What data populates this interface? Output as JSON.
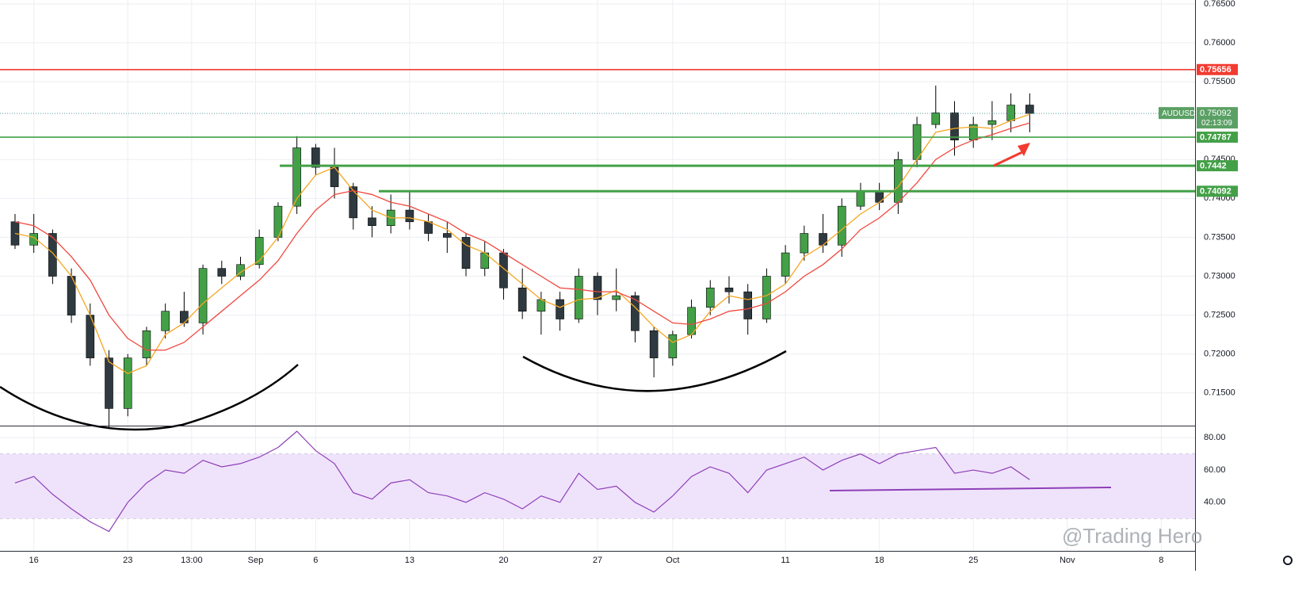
{
  "chart_data": [
    {
      "type": "candlestick",
      "symbol": "AUDUSD",
      "countdown": "02:13:09",
      "categories": [
        null,
        null,
        null,
        null,
        null,
        null,
        null,
        null,
        null,
        null,
        null,
        null,
        null,
        null,
        null,
        null,
        null,
        null,
        null,
        null,
        null,
        null,
        null,
        null,
        null,
        null,
        null,
        null,
        null,
        null,
        null,
        null,
        null,
        null,
        null,
        null,
        null,
        null,
        null,
        null,
        null,
        null,
        null,
        null,
        null,
        null,
        null,
        null,
        null,
        null,
        null,
        null,
        null,
        null,
        null
      ],
      "open": [
        0.737,
        0.734,
        0.7355,
        0.73,
        0.725,
        0.7195,
        0.713,
        0.7195,
        0.723,
        0.7255,
        0.724,
        0.731,
        0.73,
        0.7315,
        0.735,
        0.739,
        0.7465,
        0.744,
        0.7415,
        0.7375,
        0.7365,
        0.7385,
        0.737,
        0.7355,
        0.735,
        0.731,
        0.733,
        0.7285,
        0.7255,
        0.727,
        0.7245,
        0.73,
        0.727,
        0.7275,
        0.723,
        0.7195,
        0.7225,
        0.726,
        0.7285,
        0.728,
        0.7245,
        0.73,
        0.733,
        0.7355,
        0.734,
        0.739,
        0.741,
        0.7395,
        0.745,
        0.7495,
        0.751,
        0.7475,
        0.7495,
        0.75,
        0.752
      ],
      "high": [
        0.738,
        0.738,
        0.736,
        0.731,
        0.7265,
        0.7205,
        0.72,
        0.7235,
        0.7265,
        0.728,
        0.7315,
        0.732,
        0.7325,
        0.736,
        0.7395,
        0.748,
        0.747,
        0.7465,
        0.742,
        0.739,
        0.7405,
        0.741,
        0.738,
        0.737,
        0.7355,
        0.7345,
        0.7335,
        0.731,
        0.728,
        0.728,
        0.731,
        0.7305,
        0.731,
        0.728,
        0.7235,
        0.723,
        0.727,
        0.7295,
        0.73,
        0.729,
        0.731,
        0.734,
        0.7365,
        0.738,
        0.74,
        0.742,
        0.742,
        0.746,
        0.7505,
        0.7545,
        0.7525,
        0.7505,
        0.7525,
        0.7535,
        0.7535
      ],
      "low": [
        0.7335,
        0.733,
        0.729,
        0.724,
        0.7185,
        0.7105,
        0.712,
        0.7185,
        0.722,
        0.7235,
        0.7225,
        0.729,
        0.7295,
        0.731,
        0.7345,
        0.738,
        0.743,
        0.74,
        0.736,
        0.735,
        0.7355,
        0.736,
        0.7345,
        0.733,
        0.73,
        0.73,
        0.727,
        0.7245,
        0.7225,
        0.723,
        0.724,
        0.725,
        0.7255,
        0.7215,
        0.717,
        0.7185,
        0.722,
        0.725,
        0.7265,
        0.7225,
        0.724,
        0.729,
        0.732,
        0.733,
        0.7325,
        0.7385,
        0.7385,
        0.738,
        0.744,
        0.749,
        0.7455,
        0.7465,
        0.7475,
        0.7485,
        0.7485
      ],
      "close": [
        0.734,
        0.7355,
        0.73,
        0.725,
        0.7195,
        0.713,
        0.7195,
        0.723,
        0.7255,
        0.724,
        0.731,
        0.73,
        0.7315,
        0.735,
        0.739,
        0.7465,
        0.744,
        0.7415,
        0.7375,
        0.7365,
        0.7385,
        0.737,
        0.7355,
        0.735,
        0.731,
        0.733,
        0.7285,
        0.7255,
        0.727,
        0.7245,
        0.73,
        0.727,
        0.7275,
        0.723,
        0.7195,
        0.7225,
        0.726,
        0.7285,
        0.728,
        0.7245,
        0.73,
        0.733,
        0.7355,
        0.734,
        0.739,
        0.741,
        0.7395,
        0.745,
        0.7495,
        0.751,
        0.7475,
        0.7495,
        0.75,
        0.752,
        0.75092
      ],
      "up_color": "#43a047",
      "down_color": "#2f3a40",
      "series": [
        {
          "color": "#f5a623",
          "values": [
            0.7355,
            0.735,
            0.733,
            0.73,
            0.725,
            0.719,
            0.7175,
            0.7185,
            0.7225,
            0.724,
            0.7265,
            0.7285,
            0.7305,
            0.732,
            0.735,
            0.74,
            0.743,
            0.744,
            0.741,
            0.7385,
            0.7375,
            0.7375,
            0.737,
            0.736,
            0.734,
            0.733,
            0.731,
            0.729,
            0.727,
            0.726,
            0.727,
            0.7272,
            0.7282,
            0.726,
            0.7235,
            0.7215,
            0.7225,
            0.7255,
            0.7275,
            0.727,
            0.7275,
            0.729,
            0.7325,
            0.734,
            0.736,
            0.738,
            0.7395,
            0.7415,
            0.745,
            0.7485,
            0.749,
            0.7492,
            0.749,
            0.75,
            0.7508
          ]
        },
        {
          "color": "#f0483e",
          "values": [
            0.737,
            0.7365,
            0.735,
            0.7325,
            0.7295,
            0.725,
            0.722,
            0.7205,
            0.7205,
            0.7215,
            0.7235,
            0.7255,
            0.7275,
            0.7295,
            0.732,
            0.7355,
            0.7385,
            0.7405,
            0.741,
            0.7405,
            0.7395,
            0.739,
            0.738,
            0.737,
            0.7355,
            0.7345,
            0.733,
            0.7315,
            0.73,
            0.7285,
            0.7283,
            0.728,
            0.728,
            0.727,
            0.7255,
            0.724,
            0.7238,
            0.7245,
            0.7255,
            0.7258,
            0.7265,
            0.728,
            0.73,
            0.7315,
            0.7335,
            0.736,
            0.7375,
            0.7395,
            0.742,
            0.745,
            0.7465,
            0.7475,
            0.7482,
            0.749,
            0.7497
          ]
        }
      ],
      "levels": [
        {
          "value": 0.75656,
          "color": "#f23b30"
        },
        {
          "value": 0.74787,
          "color": "#43a047"
        },
        {
          "value": 0.7442,
          "color": "#43a047"
        },
        {
          "value": 0.74092,
          "color": "#43a047"
        }
      ],
      "ylim": [
        0.7108,
        0.7655
      ],
      "yticks": [
        {
          "value": 0.765,
          "label": "0.76500"
        },
        {
          "value": 0.76,
          "label": "0.76000"
        },
        {
          "value": 0.755,
          "label": "0.75500"
        },
        {
          "value": 0.745,
          "label": "0.74500"
        },
        {
          "value": 0.74,
          "label": "0.74000"
        },
        {
          "value": 0.735,
          "label": "0.73500"
        },
        {
          "value": 0.73,
          "label": "0.73000"
        },
        {
          "value": 0.725,
          "label": "0.72500"
        },
        {
          "value": 0.72,
          "label": "0.72000"
        },
        {
          "value": 0.715,
          "label": "0.71500"
        }
      ],
      "xlim": [
        -0.8,
        62.8
      ],
      "xticks": [
        {
          "value": 1,
          "label": "16"
        },
        {
          "value": 6,
          "label": "23"
        },
        {
          "value": 9.4,
          "label": "13:00"
        },
        {
          "value": 12.8,
          "label": "Sep"
        },
        {
          "value": 16,
          "label": "6"
        },
        {
          "value": 21,
          "label": "13"
        },
        {
          "value": 26,
          "label": "20"
        },
        {
          "value": 31,
          "label": "27"
        },
        {
          "value": 35,
          "label": "Oct"
        },
        {
          "value": 41,
          "label": "11"
        },
        {
          "value": 46,
          "label": "18"
        },
        {
          "value": 51,
          "label": "25"
        },
        {
          "value": 56,
          "label": "Nov"
        },
        {
          "value": 61,
          "label": "8"
        }
      ],
      "grid": true
    },
    {
      "type": "line",
      "series": [
        {
          "color": "#8e3fb8",
          "values": [
            52,
            56,
            45,
            36,
            28,
            22,
            40,
            52,
            60,
            58,
            66,
            62,
            64,
            68,
            74,
            84,
            72,
            64,
            46,
            42,
            52,
            54,
            46,
            44,
            40,
            46,
            42,
            36,
            44,
            40,
            58,
            48,
            50,
            40,
            34,
            44,
            56,
            62,
            58,
            46,
            60,
            64,
            68,
            60,
            66,
            70,
            64,
            70,
            72,
            74,
            58,
            60,
            58,
            62,
            54
          ]
        }
      ],
      "band": [
        30,
        70
      ],
      "ylim": [
        10,
        87
      ],
      "yticks": [
        {
          "value": 40,
          "label": "40.00"
        },
        {
          "value": 60,
          "label": "60.00"
        },
        {
          "value": 80,
          "label": "80.00"
        }
      ]
    }
  ],
  "watermark": "@Trading Hero"
}
